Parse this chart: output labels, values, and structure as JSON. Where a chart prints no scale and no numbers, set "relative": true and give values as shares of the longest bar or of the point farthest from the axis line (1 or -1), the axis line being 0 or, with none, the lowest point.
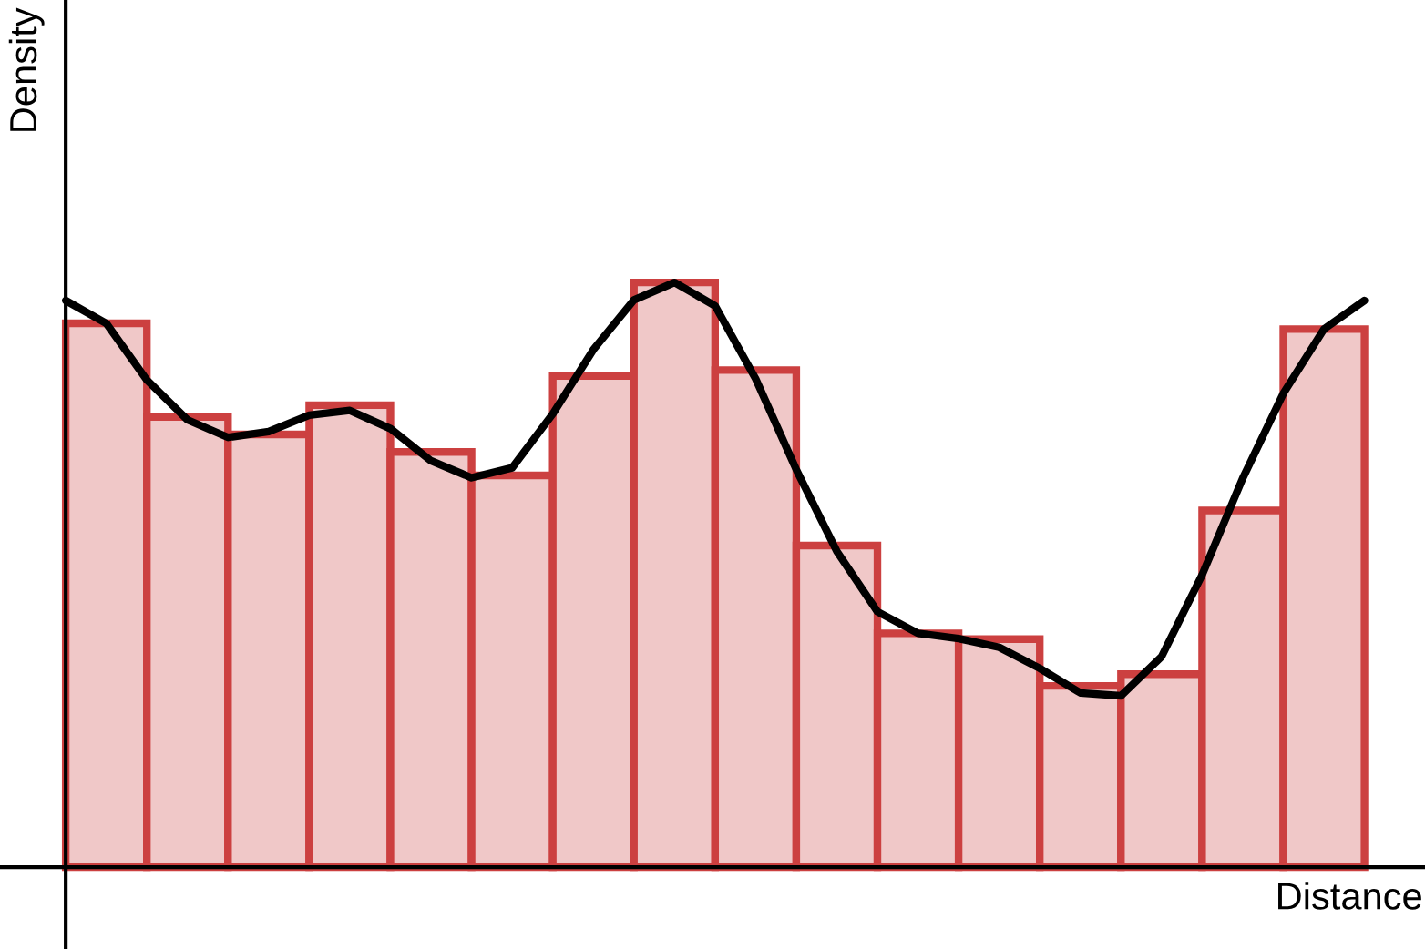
{
  "chart_data": [
    {
      "type": "bar",
      "xlabel": "Distance",
      "ylabel": "Density",
      "relative": true,
      "categories": [
        null,
        null,
        null,
        null,
        null,
        null,
        null,
        null,
        null,
        null,
        null,
        null,
        null,
        null,
        null,
        null
      ],
      "series": [
        {
          "color": "#f0c8c8",
          "values": [
            0.93,
            0.77,
            0.74,
            0.79,
            0.71,
            0.67,
            0.84,
            1.0,
            0.85,
            0.55,
            0.4,
            0.39,
            0.31,
            0.33,
            0.61,
            0.92
          ]
        }
      ]
    },
    {
      "type": "line",
      "relative": true,
      "categories": [
        null,
        null,
        null,
        null,
        null,
        null,
        null,
        null,
        null,
        null,
        null,
        null,
        null,
        null,
        null,
        null,
        null,
        null,
        null,
        null,
        null,
        null,
        null,
        null,
        null,
        null,
        null,
        null,
        null,
        null,
        null,
        null,
        null
      ],
      "series": [
        {
          "color": "#000000",
          "values": [
            0.969,
            0.93,
            0.833,
            0.765,
            0.735,
            0.745,
            0.773,
            0.781,
            0.75,
            0.695,
            0.666,
            0.683,
            0.775,
            0.885,
            0.97,
            1.0,
            0.96,
            0.835,
            0.68,
            0.54,
            0.437,
            0.4,
            0.391,
            0.376,
            0.34,
            0.298,
            0.293,
            0.36,
            0.5,
            0.665,
            0.81,
            0.92,
            0.969
          ]
        }
      ]
    }
  ]
}
